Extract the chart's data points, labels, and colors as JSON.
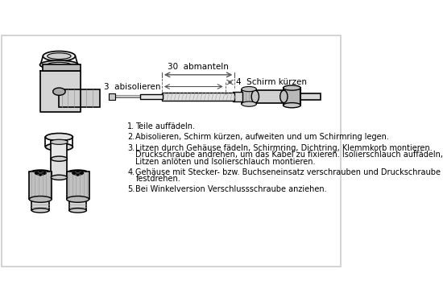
{
  "background_color": "#ffffff",
  "border_color": "#cccccc",
  "text_color": "#000000",
  "dim_color": "#555555",
  "line_color": "#000000",
  "gray_color": "#888888",
  "dim_30_label": "30  abmanteln",
  "dim_4_label": "4  Schirm kürzen",
  "dim_3_label": "3  abisolieren",
  "figsize": [
    5.5,
    3.75
  ],
  "dpi": 100
}
